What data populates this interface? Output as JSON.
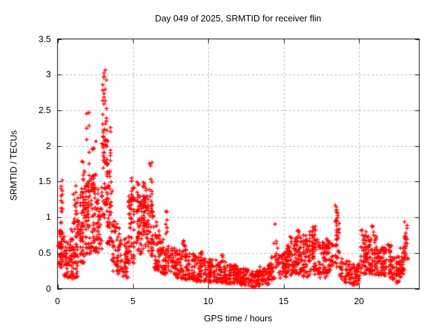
{
  "chart_data": {
    "type": "scatter",
    "title": "Day 049 of 2025, SRMTID for receiver flin",
    "xlabel": "GPS time / hours",
    "ylabel": "SRMTID / TECUs",
    "xlim": [
      0,
      24
    ],
    "ylim": [
      0,
      3.5
    ],
    "xticks": [
      0,
      5,
      10,
      15,
      20
    ],
    "xtick_labels": [
      "0",
      "5",
      "10",
      "15",
      "20"
    ],
    "yticks": [
      0,
      0.5,
      1,
      1.5,
      2,
      2.5,
      3,
      3.5
    ],
    "ytick_labels": [
      "0",
      "0.5",
      "1",
      "1.5",
      "2",
      "2.5",
      "3",
      "3.5"
    ],
    "grid": true,
    "grid_style": "dashed",
    "grid_color": "#b0b0b0",
    "border_color": "#000000",
    "marker": "plus",
    "marker_color": "#ff0000",
    "marker_size_px": 7,
    "background": "#ffffff",
    "legend": null,
    "max_value": 3.07,
    "max_value_at_hour": 3.1,
    "min_region": {
      "hours": [
        12.5,
        13.3
      ],
      "approx_value": 0.05
    },
    "data_span_hours": [
      0.0,
      23.3
    ],
    "cluster_format": "[x_start_hour, x_end_hour, n_points, y_min_TECU, y_max_TECU, low_bias_exponent]",
    "clusters": [
      [
        0.02,
        0.45,
        55,
        0.28,
        0.85,
        1.2
      ],
      [
        0.15,
        0.5,
        14,
        0.85,
        1.62,
        1.4
      ],
      [
        0.45,
        0.95,
        50,
        0.15,
        0.7,
        1.2
      ],
      [
        0.9,
        1.35,
        55,
        0.12,
        0.95,
        1.1
      ],
      [
        1.05,
        1.35,
        12,
        0.95,
        1.45,
        1.2
      ],
      [
        1.35,
        1.8,
        60,
        0.35,
        1.35,
        1.0
      ],
      [
        1.45,
        1.75,
        12,
        1.35,
        1.85,
        1.2
      ],
      [
        1.8,
        2.15,
        55,
        0.45,
        1.5,
        1.0
      ],
      [
        1.85,
        2.1,
        10,
        1.5,
        2.47,
        1.4
      ],
      [
        2.15,
        2.6,
        50,
        0.5,
        1.55,
        1.0
      ],
      [
        2.3,
        2.55,
        8,
        1.55,
        2.1,
        1.2
      ],
      [
        2.6,
        2.95,
        42,
        0.45,
        1.45,
        1.05
      ],
      [
        2.95,
        3.3,
        52,
        0.95,
        2.3,
        0.9
      ],
      [
        3.0,
        3.25,
        20,
        2.3,
        3.07,
        1.0
      ],
      [
        3.3,
        3.6,
        40,
        0.6,
        1.7,
        1.1
      ],
      [
        3.35,
        3.55,
        8,
        1.7,
        2.3,
        1.2
      ],
      [
        3.6,
        4.1,
        48,
        0.2,
        0.95,
        1.2
      ],
      [
        4.1,
        4.65,
        50,
        0.15,
        0.7,
        1.2
      ],
      [
        4.65,
        5.15,
        55,
        0.35,
        1.3,
        1.05
      ],
      [
        4.75,
        5.1,
        8,
        1.3,
        1.62,
        1.1
      ],
      [
        5.15,
        5.6,
        52,
        0.45,
        1.3,
        1.0
      ],
      [
        5.2,
        5.45,
        6,
        1.3,
        1.5,
        1.0
      ],
      [
        5.6,
        6.05,
        58,
        0.55,
        1.35,
        0.95
      ],
      [
        5.7,
        6.0,
        6,
        1.35,
        1.52,
        1.0
      ],
      [
        6.05,
        6.4,
        40,
        0.45,
        1.3,
        1.0
      ],
      [
        6.1,
        6.3,
        8,
        1.3,
        1.78,
        1.1
      ],
      [
        6.4,
        6.85,
        45,
        0.25,
        0.95,
        1.3
      ],
      [
        6.85,
        7.25,
        45,
        0.2,
        0.7,
        1.2
      ],
      [
        7.1,
        7.35,
        8,
        0.7,
        1.12,
        1.1
      ],
      [
        7.35,
        7.85,
        48,
        0.18,
        0.6,
        1.2
      ],
      [
        7.85,
        8.5,
        55,
        0.14,
        0.55,
        1.25
      ],
      [
        8.2,
        8.45,
        6,
        0.55,
        0.68,
        1.0
      ],
      [
        8.5,
        9.2,
        55,
        0.12,
        0.5,
        1.3
      ],
      [
        9.2,
        9.85,
        50,
        0.1,
        0.45,
        1.25
      ],
      [
        9.4,
        9.6,
        5,
        0.45,
        0.58,
        1.0
      ],
      [
        9.85,
        10.55,
        60,
        0.09,
        0.42,
        1.25
      ],
      [
        10.55,
        11.25,
        62,
        0.08,
        0.38,
        1.25
      ],
      [
        10.8,
        11.05,
        5,
        0.38,
        0.48,
        1.0
      ],
      [
        11.25,
        12.0,
        65,
        0.07,
        0.34,
        1.25
      ],
      [
        12.0,
        12.7,
        60,
        0.05,
        0.28,
        1.25
      ],
      [
        12.7,
        13.35,
        58,
        0.02,
        0.25,
        1.2
      ],
      [
        13.35,
        14.05,
        55,
        0.06,
        0.33,
        1.2
      ],
      [
        14.05,
        14.35,
        28,
        0.12,
        0.45,
        1.1
      ],
      [
        14.35,
        14.6,
        16,
        0.3,
        0.95,
        1.2
      ],
      [
        14.6,
        15.15,
        45,
        0.15,
        0.5,
        1.2
      ],
      [
        15.15,
        15.65,
        50,
        0.18,
        0.62,
        1.1
      ],
      [
        15.35,
        15.55,
        5,
        0.62,
        0.73,
        1.0
      ],
      [
        15.65,
        16.15,
        50,
        0.2,
        0.72,
        1.1
      ],
      [
        15.85,
        16.05,
        6,
        0.72,
        0.83,
        1.0
      ],
      [
        16.15,
        16.65,
        50,
        0.15,
        0.75,
        1.1
      ],
      [
        16.65,
        17.25,
        55,
        0.2,
        0.8,
        1.05
      ],
      [
        16.85,
        17.15,
        6,
        0.8,
        0.88,
        1.0
      ],
      [
        17.25,
        17.85,
        50,
        0.15,
        0.65,
        1.1
      ],
      [
        17.85,
        18.35,
        45,
        0.2,
        0.7,
        1.05
      ],
      [
        18.35,
        18.7,
        32,
        0.3,
        0.95,
        0.95
      ],
      [
        18.42,
        18.62,
        10,
        0.95,
        1.17,
        1.0
      ],
      [
        18.7,
        19.45,
        50,
        0.08,
        0.42,
        1.2
      ],
      [
        19.45,
        20.05,
        50,
        0.05,
        0.35,
        1.2
      ],
      [
        20.05,
        20.55,
        50,
        0.18,
        0.85,
        1.1
      ],
      [
        20.55,
        21.15,
        55,
        0.18,
        0.75,
        1.1
      ],
      [
        20.8,
        21.0,
        5,
        0.75,
        0.9,
        1.0
      ],
      [
        21.15,
        21.65,
        50,
        0.18,
        0.6,
        1.1
      ],
      [
        21.65,
        22.25,
        48,
        0.15,
        0.62,
        1.1
      ],
      [
        22.25,
        22.75,
        42,
        0.08,
        0.45,
        1.2
      ],
      [
        22.75,
        23.02,
        24,
        0.2,
        0.62,
        1.0
      ],
      [
        23.02,
        23.28,
        22,
        0.3,
        0.96,
        0.85
      ]
    ]
  }
}
